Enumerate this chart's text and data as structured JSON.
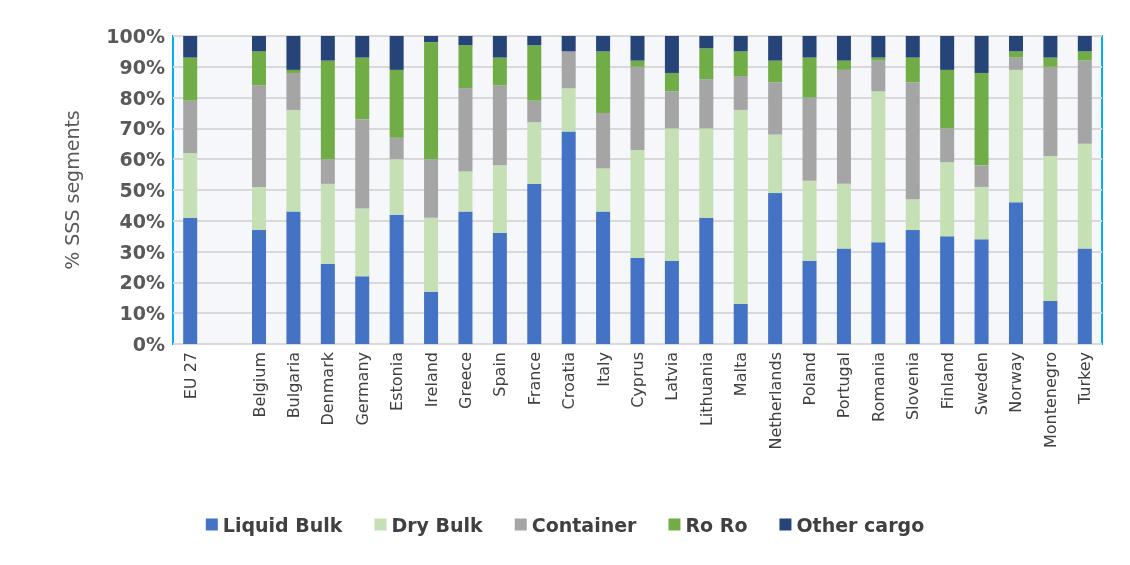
{
  "chart_data": {
    "type": "bar",
    "stacked": true,
    "ylabel": "% SSS segments",
    "categories": [
      "EU 27",
      null,
      "Belgium",
      "Bulgaria",
      "Denmark",
      "Germany",
      "Estonia",
      "Ireland",
      "Greece",
      "Spain",
      "France",
      "Croatia",
      "Italy",
      "Cyprus",
      "Latvia",
      "Lithuania",
      "Malta",
      "Netherlands",
      "Poland",
      "Portugal",
      "Romania",
      "Slovenia",
      "Finland",
      "Sweden",
      "Norway",
      "Montenegro",
      "Turkey"
    ],
    "series": [
      {
        "name": "Liquid Bulk",
        "color": "#4472c4",
        "values": [
          41,
          null,
          37,
          43,
          26,
          22,
          42,
          17,
          43,
          36,
          52,
          69,
          43,
          28,
          27,
          41,
          13,
          49,
          27,
          31,
          33,
          37,
          35,
          34,
          46,
          14,
          31
        ]
      },
      {
        "name": "Dry Bulk",
        "color": "#c5e0b4",
        "values": [
          21,
          null,
          14,
          33,
          26,
          22,
          18,
          24,
          13,
          22,
          20,
          14,
          14,
          35,
          43,
          29,
          63,
          19,
          26,
          21,
          49,
          10,
          24,
          17,
          43,
          47,
          34
        ]
      },
      {
        "name": "Container",
        "color": "#a5a5a5",
        "values": [
          17,
          null,
          33,
          12,
          8,
          29,
          7,
          19,
          27,
          26,
          7,
          12,
          18,
          27,
          12,
          16,
          11,
          17,
          27,
          37,
          10,
          38,
          11,
          7,
          4,
          29,
          27
        ]
      },
      {
        "name": "Ro Ro",
        "color": "#70ad47",
        "values": [
          14,
          null,
          11,
          1,
          32,
          20,
          22,
          38,
          14,
          9,
          18,
          0,
          20,
          2,
          6,
          10,
          8,
          7,
          13,
          3,
          1,
          8,
          19,
          30,
          2,
          3,
          3
        ]
      },
      {
        "name": "Other cargo",
        "color": "#264478",
        "values": [
          7,
          null,
          5,
          11,
          8,
          7,
          11,
          2,
          3,
          7,
          3,
          5,
          5,
          8,
          12,
          4,
          5,
          8,
          7,
          8,
          7,
          7,
          11,
          12,
          5,
          7,
          5
        ]
      }
    ],
    "ylim": [
      0,
      100
    ],
    "yticks": [
      {
        "value": 0,
        "label": "0%"
      },
      {
        "value": 10,
        "label": "10%"
      },
      {
        "value": 20,
        "label": "20%"
      },
      {
        "value": 30,
        "label": "30%"
      },
      {
        "value": 40,
        "label": "40%"
      },
      {
        "value": 50,
        "label": "50%"
      },
      {
        "value": 60,
        "label": "60%"
      },
      {
        "value": 70,
        "label": "70%"
      },
      {
        "value": 80,
        "label": "80%"
      },
      {
        "value": 90,
        "label": "90%"
      },
      {
        "value": 100,
        "label": "100%"
      }
    ],
    "grid": "y",
    "legend": "bottom"
  }
}
